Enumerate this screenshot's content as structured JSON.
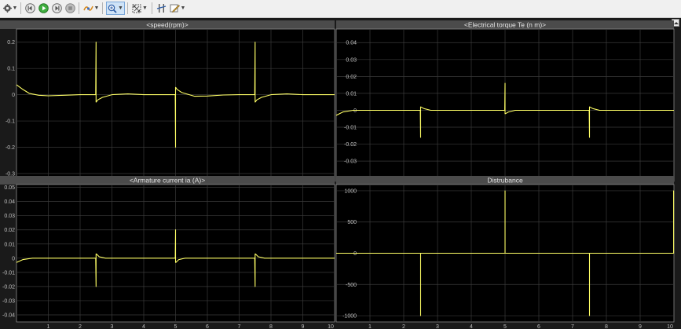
{
  "toolbar": {
    "buttons": [
      {
        "name": "settings-button",
        "icon": "gear-icon",
        "dropdown": true
      },
      {
        "name": "step-back-button",
        "icon": "step-back-icon",
        "dropdown": false
      },
      {
        "name": "run-button",
        "icon": "play-icon",
        "dropdown": false
      },
      {
        "name": "step-forward-button",
        "icon": "step-forward-icon",
        "dropdown": false
      },
      {
        "name": "stop-button",
        "icon": "stop-icon",
        "dropdown": false
      },
      {
        "name": "highlight-signal-button",
        "icon": "highlight-icon",
        "dropdown": true
      },
      {
        "name": "zoom-button",
        "icon": "zoom-in-icon",
        "dropdown": true,
        "pressed": true
      },
      {
        "name": "autoscale-button",
        "icon": "autoscale-icon",
        "dropdown": true
      },
      {
        "name": "cursor-measurements-button",
        "icon": "cursor-icon",
        "dropdown": false
      },
      {
        "name": "style-button",
        "icon": "edit-style-icon",
        "dropdown": true
      }
    ]
  },
  "colors": {
    "plot_bg": "#000000",
    "grid": "#3a3a3a",
    "axis": "#c0c0c0",
    "title_bar": "#4b4b4b",
    "line": "#ffff66"
  },
  "chart_data": [
    {
      "type": "line",
      "title": "<speed(rpm)>",
      "xlim": [
        0,
        10
      ],
      "ylim": [
        -0.33,
        0.25
      ],
      "xticks": [
        1,
        2,
        3,
        4,
        5,
        6,
        7,
        8,
        9,
        10
      ],
      "yticks": [
        -0.3,
        -0.2,
        -0.1,
        0,
        0.1,
        0.2
      ],
      "x": [
        0,
        0.2,
        0.4,
        0.7,
        1.0,
        1.5,
        2.0,
        2.49,
        2.5,
        2.5,
        2.51,
        2.55,
        2.7,
        3.0,
        3.5,
        4.0,
        4.99,
        5.0,
        5.0,
        5.01,
        5.05,
        5.2,
        5.6,
        6.0,
        6.5,
        7.0,
        7.49,
        7.5,
        7.5,
        7.51,
        7.55,
        7.7,
        8.0,
        8.5,
        9.0,
        10.0
      ],
      "y": [
        0.038,
        0.02,
        0.005,
        -0.002,
        -0.004,
        -0.002,
        0.0,
        0.0,
        0.2,
        -0.028,
        -0.027,
        -0.02,
        -0.01,
        0.0,
        0.003,
        0.0,
        0.0,
        -0.2,
        0.028,
        0.027,
        0.02,
        0.008,
        -0.006,
        -0.005,
        -0.001,
        0.0,
        0.0,
        0.2,
        -0.028,
        -0.027,
        -0.02,
        -0.01,
        0.0,
        0.003,
        0.0,
        0.0
      ]
    },
    {
      "type": "line",
      "title": "<Electrical torque Te (n m)>",
      "xlim": [
        0,
        10
      ],
      "ylim": [
        -0.042,
        0.048
      ],
      "xticks": [
        1,
        2,
        3,
        4,
        5,
        6,
        7,
        8,
        9,
        10
      ],
      "yticks": [
        -0.04,
        -0.03,
        -0.02,
        -0.01,
        0,
        0.01,
        0.02,
        0.03,
        0.04
      ],
      "x": [
        0,
        0.2,
        0.5,
        1.0,
        2.0,
        2.49,
        2.5,
        2.5,
        2.51,
        2.6,
        2.8,
        3.2,
        4.0,
        4.99,
        5.0,
        5.0,
        5.01,
        5.1,
        5.3,
        5.7,
        6.5,
        7.49,
        7.5,
        7.5,
        7.51,
        7.6,
        7.8,
        8.2,
        9.0,
        10.0
      ],
      "y": [
        -0.003,
        -0.001,
        0.0,
        0.0,
        0.0,
        0.0,
        -0.016,
        0.002,
        0.002,
        0.001,
        0.0,
        0.0,
        0.0,
        0.0,
        0.016,
        -0.002,
        -0.002,
        -0.001,
        0.0,
        0.0,
        0.0,
        0.0,
        -0.016,
        0.002,
        0.002,
        0.001,
        0.0,
        0.0,
        0.0,
        0.0
      ]
    },
    {
      "type": "line",
      "title": "<Armature current ia (A)>",
      "xlim": [
        0,
        10
      ],
      "ylim": [
        -0.045,
        0.052
      ],
      "xticks": [
        1,
        2,
        3,
        4,
        5,
        6,
        7,
        8,
        9,
        10
      ],
      "yticks": [
        -0.04,
        -0.03,
        -0.02,
        -0.01,
        0,
        0.01,
        0.02,
        0.03,
        0.04,
        0.05
      ],
      "x": [
        0,
        0.2,
        0.5,
        1.0,
        2.0,
        2.49,
        2.5,
        2.5,
        2.51,
        2.6,
        2.8,
        3.2,
        4.0,
        4.99,
        5.0,
        5.0,
        5.01,
        5.1,
        5.3,
        5.7,
        6.5,
        7.49,
        7.5,
        7.5,
        7.51,
        7.6,
        7.8,
        8.2,
        9.0,
        10.0
      ],
      "y": [
        -0.003,
        -0.001,
        0.0,
        0.0,
        0.0,
        0.0,
        -0.02,
        0.003,
        0.003,
        0.001,
        0.0,
        0.0,
        0.0,
        0.0,
        0.02,
        -0.003,
        -0.003,
        -0.001,
        0.0,
        0.0,
        0.0,
        0.0,
        -0.02,
        0.003,
        0.003,
        0.001,
        0.0,
        0.0,
        0.0,
        0.0
      ]
    },
    {
      "type": "line",
      "title": "Distrubance",
      "xlim": [
        0,
        10
      ],
      "ylim": [
        -1100,
        1100
      ],
      "xticks": [
        1,
        2,
        3,
        4,
        5,
        6,
        7,
        8,
        9,
        10
      ],
      "yticks": [
        -1000,
        -500,
        0,
        500,
        1000
      ],
      "x": [
        0,
        2.5,
        2.5,
        2.5,
        5.0,
        5.0,
        5.0,
        7.5,
        7.5,
        7.5,
        9.99,
        9.99,
        10.0
      ],
      "y": [
        0,
        0,
        -1000,
        0,
        0,
        1000,
        0,
        0,
        -1000,
        0,
        0,
        1000,
        1000
      ]
    }
  ]
}
